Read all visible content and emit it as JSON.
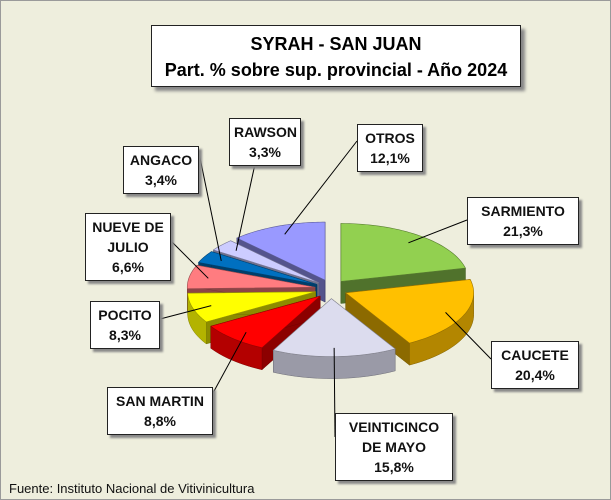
{
  "chart_data": {
    "type": "pie3d",
    "title": "SYRAH - SAN JUAN",
    "subtitle": "Part. % sobre sup. provincial - Año 2024",
    "source": "Fuente: Instituto Nacional de Vitivinicultura",
    "categories": [
      "SARMIENTO",
      "CAUCETE",
      "VEINTICINCO DE MAYO",
      "SAN MARTIN",
      "POCITO",
      "NUEVE DE JULIO",
      "ANGACO",
      "RAWSON",
      "OTROS"
    ],
    "values": [
      21.3,
      20.4,
      15.8,
      8.8,
      8.3,
      6.6,
      3.4,
      3.3,
      12.1
    ],
    "value_labels": [
      "21,3%",
      "20,4%",
      "15,8%",
      "8,8%",
      "8,3%",
      "6,6%",
      "3,4%",
      "3,3%",
      "12,1%"
    ],
    "colors": [
      "#92d050",
      "#ffc000",
      "#dcdcee",
      "#ff0000",
      "#ffff00",
      "#ff7c80",
      "#0070c0",
      "#ccccff",
      "#9999ff"
    ]
  }
}
